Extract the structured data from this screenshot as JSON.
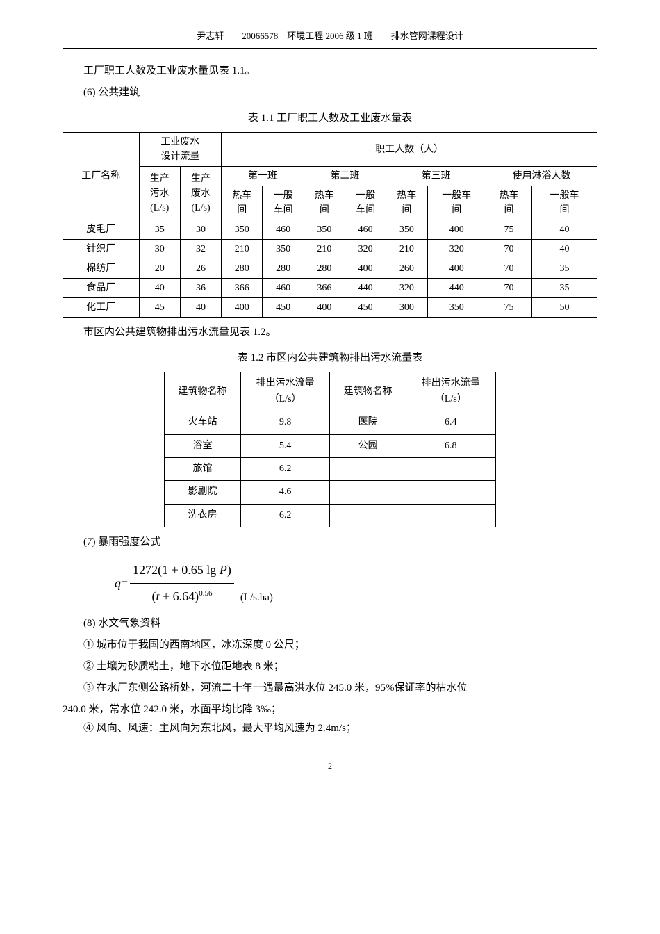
{
  "header": {
    "text": "尹志轩　　20066578　环境工程 2006 级 1 班　　排水管网课程设计"
  },
  "paragraphs": {
    "p1": "工厂职工人数及工业废水量见表 1.1。",
    "p2": "(6) 公共建筑",
    "p3": "市区内公共建筑物排出污水流量见表 1.2。",
    "p4": "(7) 暴雨强度公式",
    "p5": "(8) 水文气象资料",
    "p6": "① 城市位于我国的西南地区，冰冻深度 0 公尺；",
    "p7": "② 土壤为砂质粘土，地下水位距地表 8 米；",
    "p8": "③ 在水厂东侧公路桥处，河流二十年一遇最高洪水位 245.0 米，95%保证率的枯水位",
    "p8b": "240.0 米，常水位 242.0 米，水面平均比降 3‰；",
    "p9": "④ 风向、风速：主风向为东北风，最大平均风速为 2.4m/s；"
  },
  "table1": {
    "title": "表 1.1  工厂职工人数及工业废水量表",
    "headers": {
      "factory_name": "工厂名称",
      "industrial_waste": "工业废水",
      "design_flow": "设计流量",
      "staff_count": "职工人数（人）",
      "shift1": "第一班",
      "shift2": "第二班",
      "shift3": "第三班",
      "shower_count": "使用淋浴人数",
      "prod_sewage": "生产",
      "prod_sewage2": "污水",
      "prod_waste": "生产",
      "prod_waste2": "废水",
      "unit_ls": "(L/s)",
      "hot_workshop": "热车",
      "hot_workshop2": "间",
      "normal_workshop": "一般",
      "normal_workshop2": "车间",
      "normal_workshop3": "一般车",
      "normal_workshop4": "间",
      "normal_car": "一般车"
    },
    "rows": [
      {
        "name": "皮毛厂",
        "sewage": "35",
        "waste": "30",
        "s1h": "350",
        "s1n": "460",
        "s2h": "350",
        "s2n": "460",
        "s3h": "350",
        "s3n": "400",
        "bh": "75",
        "bn": "40"
      },
      {
        "name": "针织厂",
        "sewage": "30",
        "waste": "32",
        "s1h": "210",
        "s1n": "350",
        "s2h": "210",
        "s2n": "320",
        "s3h": "210",
        "s3n": "320",
        "bh": "70",
        "bn": "40"
      },
      {
        "name": "棉纺厂",
        "sewage": "20",
        "waste": "26",
        "s1h": "280",
        "s1n": "280",
        "s2h": "280",
        "s2n": "400",
        "s3h": "260",
        "s3n": "400",
        "bh": "70",
        "bn": "35"
      },
      {
        "name": "食品厂",
        "sewage": "40",
        "waste": "36",
        "s1h": "366",
        "s1n": "460",
        "s2h": "366",
        "s2n": "440",
        "s3h": "320",
        "s3n": "440",
        "bh": "70",
        "bn": "35"
      },
      {
        "name": "化工厂",
        "sewage": "45",
        "waste": "40",
        "s1h": "400",
        "s1n": "450",
        "s2h": "400",
        "s2n": "450",
        "s3h": "300",
        "s3n": "350",
        "bh": "75",
        "bn": "50"
      }
    ]
  },
  "table2": {
    "title": "表 1.2  市区内公共建筑物排出污水流量表",
    "headers": {
      "building_name": "建筑物名称",
      "discharge_flow": "排出污水流量",
      "unit": "（L/s）"
    },
    "rows": [
      {
        "n1": "火车站",
        "f1": "9.8",
        "n2": "医院",
        "f2": "6.4"
      },
      {
        "n1": "浴室",
        "f1": "5.4",
        "n2": "公园",
        "f2": "6.8"
      },
      {
        "n1": "旅馆",
        "f1": "6.2",
        "n2": "",
        "f2": ""
      },
      {
        "n1": "影剧院",
        "f1": "4.6",
        "n2": "",
        "f2": ""
      },
      {
        "n1": "洗衣房",
        "f1": "6.2",
        "n2": "",
        "f2": ""
      }
    ]
  },
  "formula": {
    "q_eq": "q",
    "equals": " = ",
    "num": "1272(1 + 0.65 lg ",
    "num_p": "P",
    "num_end": ")",
    "den_open": "(",
    "den_t": "t",
    "den_mid": " + 6.64)",
    "exp": "0.56",
    "unit": "(L/s.ha)"
  },
  "page_num": "2"
}
